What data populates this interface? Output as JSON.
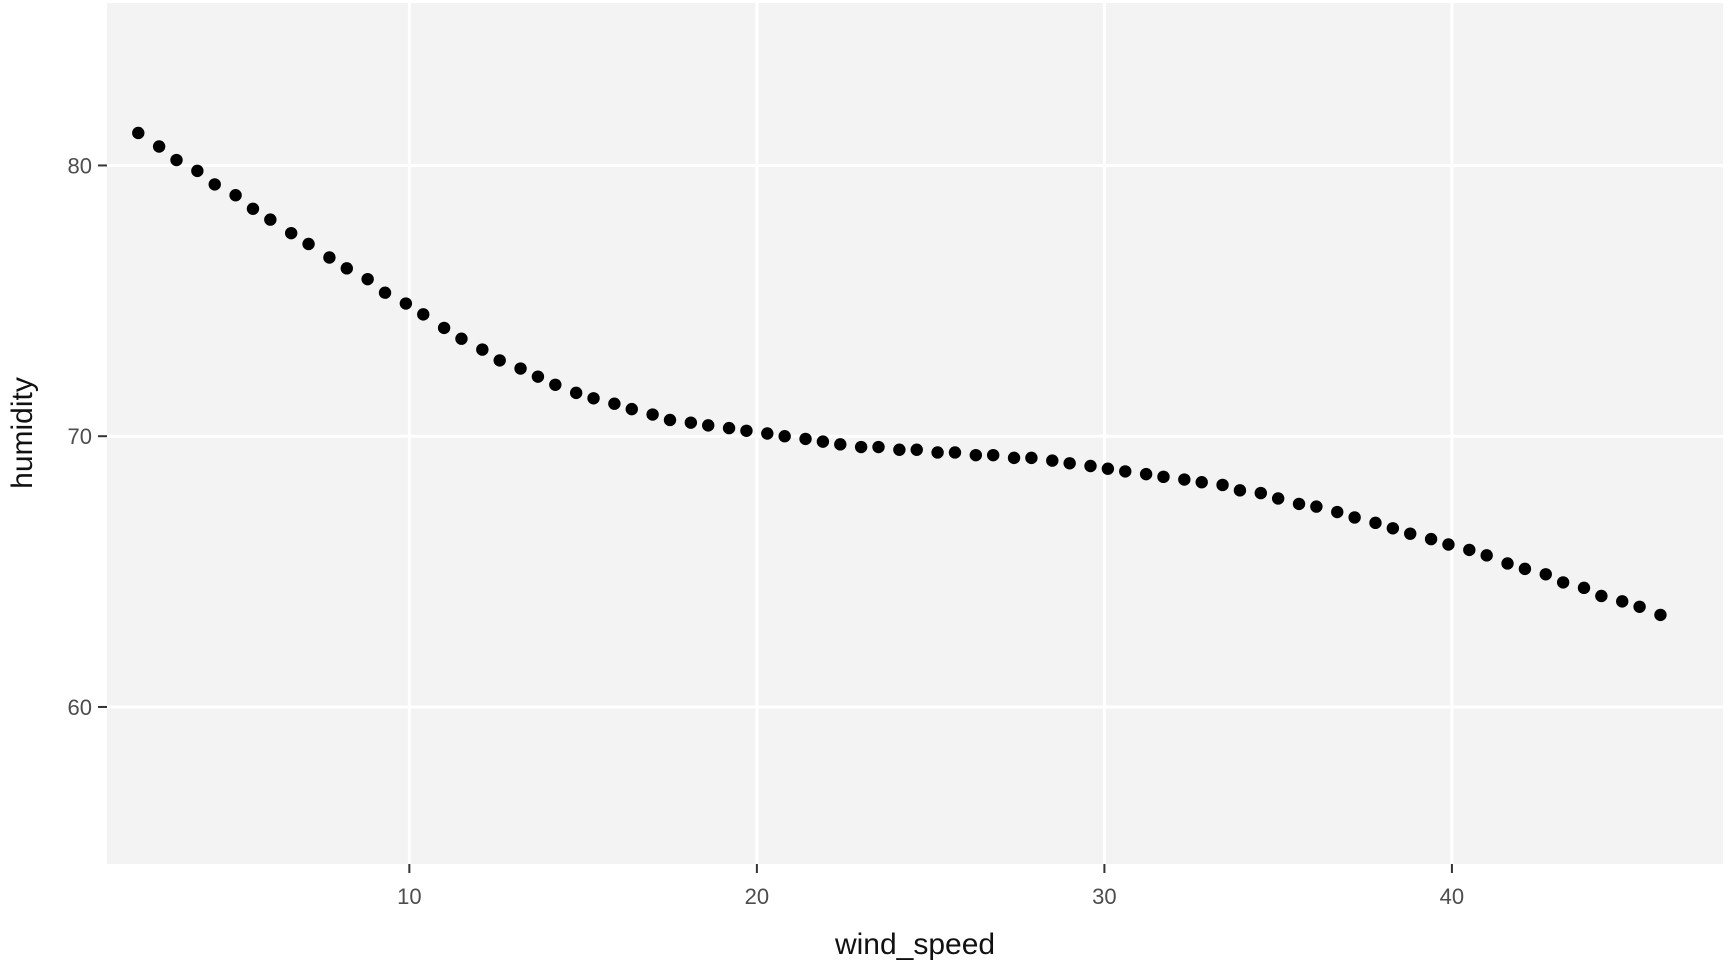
{
  "chart_data": {
    "type": "scatter",
    "title": "",
    "xlabel": "wind_speed",
    "ylabel": "humidity",
    "xlim": [
      1.3,
      47.8
    ],
    "ylim": [
      54.2,
      86
    ],
    "x_ticks": [
      10,
      20,
      30,
      40
    ],
    "y_ticks": [
      60,
      70,
      80
    ],
    "x_tick_labels": [
      "10",
      "20",
      "30",
      "40"
    ],
    "y_tick_labels": [
      "60",
      "70",
      "80"
    ],
    "grid": true,
    "legend": "none",
    "panel_background": "#f3f3f3",
    "grid_color": "#ffffff",
    "point_color": "#000000",
    "series": [
      {
        "x": [
          2.2,
          2.8,
          3.3,
          3.9,
          4.4,
          5.0,
          5.5,
          6.0,
          6.6,
          7.1,
          7.7,
          8.2,
          8.8,
          9.3,
          9.9,
          10.4,
          11.0,
          11.5,
          12.1,
          12.6,
          13.2,
          13.7,
          14.2,
          14.8,
          15.3,
          15.9,
          16.4,
          17.0,
          17.5,
          18.1,
          18.6,
          19.2,
          19.7,
          20.3,
          20.8,
          21.4,
          21.9,
          22.4,
          23.0,
          23.5,
          24.1,
          24.6,
          25.2,
          25.7,
          26.3,
          26.8,
          27.4,
          27.9,
          28.5,
          29.0,
          29.6,
          30.1,
          30.6,
          31.2,
          31.7,
          32.3,
          32.8,
          33.4,
          33.9,
          34.5,
          35.0,
          35.6,
          36.1,
          36.7,
          37.2,
          37.8,
          38.3,
          38.8,
          39.4,
          39.9,
          40.5,
          41.0,
          41.6,
          42.1,
          42.7,
          43.2,
          43.8,
          44.3,
          44.9,
          45.4,
          46.0
        ],
        "y": [
          81.2,
          80.7,
          80.2,
          79.8,
          79.3,
          78.9,
          78.4,
          78.0,
          77.5,
          77.1,
          76.6,
          76.2,
          75.8,
          75.3,
          74.9,
          74.5,
          74.0,
          73.6,
          73.2,
          72.8,
          72.5,
          72.2,
          71.9,
          71.6,
          71.4,
          71.2,
          71.0,
          70.8,
          70.6,
          70.5,
          70.4,
          70.3,
          70.2,
          70.1,
          70.0,
          69.9,
          69.8,
          69.7,
          69.6,
          69.6,
          69.5,
          69.5,
          69.4,
          69.4,
          69.3,
          69.3,
          69.2,
          69.2,
          69.1,
          69.0,
          68.9,
          68.8,
          68.7,
          68.6,
          68.5,
          68.4,
          68.3,
          68.2,
          68.0,
          67.9,
          67.7,
          67.5,
          67.4,
          67.2,
          67.0,
          66.8,
          66.6,
          66.4,
          66.2,
          66.0,
          65.8,
          65.6,
          65.3,
          65.1,
          64.9,
          64.6,
          64.4,
          64.1,
          63.9,
          63.7,
          63.4
        ]
      }
    ]
  }
}
